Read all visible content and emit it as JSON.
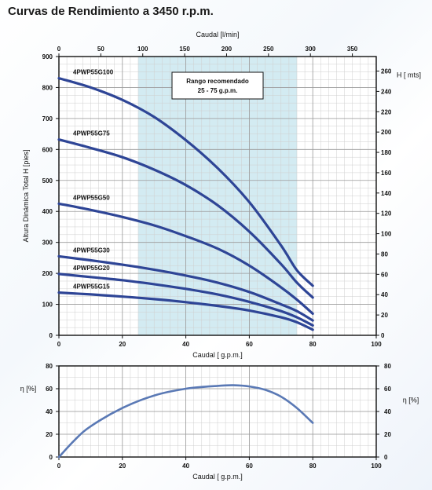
{
  "page_title": "Curvas de Rendimiento a 3450 r.p.m.",
  "colors": {
    "curve": "#2e4596",
    "eff_curve": "#5a79b5",
    "band": "#d3ebf2",
    "grid_major": "#9a9a9a",
    "grid_minor": "#cfcfcf"
  },
  "chart_data": [
    {
      "type": "line",
      "title": "",
      "xlabel": "Caudal [ g.p.m.]",
      "x2label": "Caudal [l/min]",
      "ylabel": "Altura Dinámica Total H [pies]",
      "y2label": "H [ mts]",
      "xlim": [
        0,
        100
      ],
      "x2lim": [
        0,
        378.5
      ],
      "ylim": [
        0,
        900
      ],
      "y2lim": [
        0,
        274.3
      ],
      "x_ticks": [
        0,
        20,
        40,
        60,
        80,
        100
      ],
      "x2_ticks": [
        0,
        50,
        100,
        150,
        200,
        250,
        300,
        350
      ],
      "y_ticks": [
        0,
        100,
        200,
        300,
        400,
        500,
        600,
        700,
        800,
        900
      ],
      "y2_ticks": [
        0,
        20,
        40,
        60,
        80,
        100,
        120,
        140,
        160,
        180,
        200,
        220,
        240,
        260
      ],
      "grid": true,
      "highlight_band": {
        "x_range": [
          25,
          75
        ],
        "label_line1": "Rango recomendado",
        "label_line2": "25 - 75 g.p.m."
      },
      "series": [
        {
          "name": "4PWP55G100",
          "x": [
            0,
            10,
            20,
            30,
            40,
            50,
            60,
            70,
            75,
            80
          ],
          "y": [
            830,
            800,
            760,
            705,
            630,
            540,
            430,
            290,
            210,
            160
          ]
        },
        {
          "name": "4PWP55G75",
          "x": [
            0,
            10,
            20,
            30,
            40,
            50,
            60,
            70,
            75,
            80
          ],
          "y": [
            632,
            605,
            575,
            535,
            485,
            420,
            335,
            230,
            170,
            122
          ]
        },
        {
          "name": "4PWP55G50",
          "x": [
            0,
            10,
            20,
            30,
            40,
            50,
            60,
            70,
            75,
            80
          ],
          "y": [
            425,
            405,
            382,
            355,
            320,
            280,
            225,
            155,
            115,
            70
          ]
        },
        {
          "name": "4PWP55G30",
          "x": [
            0,
            10,
            20,
            30,
            40,
            50,
            60,
            70,
            75,
            80
          ],
          "y": [
            255,
            242,
            228,
            212,
            193,
            170,
            140,
            100,
            78,
            48
          ]
        },
        {
          "name": "4PWP55G20",
          "x": [
            0,
            10,
            20,
            30,
            40,
            50,
            60,
            70,
            75,
            80
          ],
          "y": [
            198,
            188,
            178,
            165,
            150,
            132,
            108,
            78,
            58,
            32
          ]
        },
        {
          "name": "4PWP55G15",
          "x": [
            0,
            10,
            20,
            30,
            40,
            50,
            60,
            70,
            75,
            80
          ],
          "y": [
            138,
            132,
            125,
            117,
            107,
            95,
            80,
            58,
            42,
            18
          ]
        }
      ]
    },
    {
      "type": "line",
      "title": "",
      "xlabel": "Caudal [ g.p.m.]",
      "ylabel": "η [%]",
      "y2label": "η [%]",
      "xlim": [
        0,
        100
      ],
      "ylim": [
        0,
        80
      ],
      "x_ticks": [
        0,
        20,
        40,
        60,
        80,
        100
      ],
      "y_ticks": [
        0,
        20,
        40,
        60,
        80
      ],
      "grid": true,
      "series": [
        {
          "name": "",
          "x": [
            0,
            5,
            10,
            20,
            30,
            40,
            50,
            55,
            60,
            65,
            70,
            75,
            80
          ],
          "y": [
            0,
            15,
            27,
            43,
            54,
            60,
            62.5,
            63,
            62,
            59,
            53,
            43,
            30
          ]
        }
      ]
    }
  ]
}
